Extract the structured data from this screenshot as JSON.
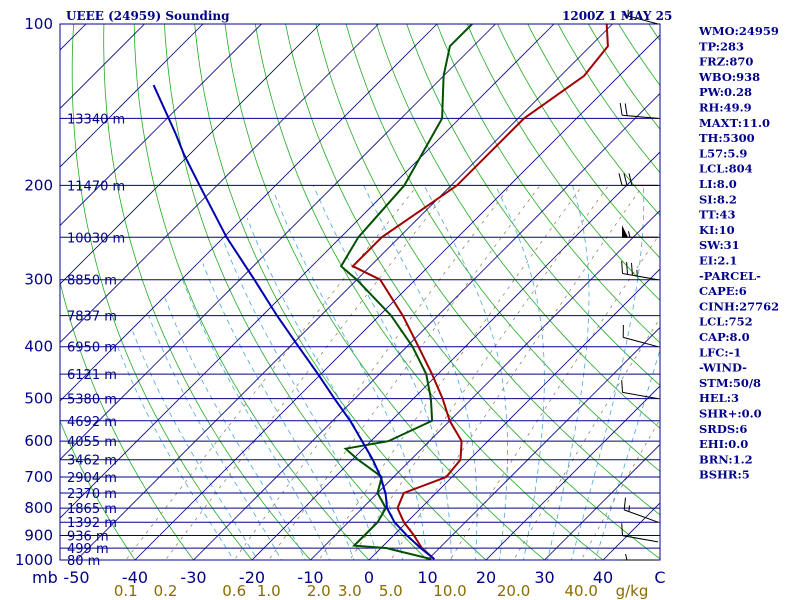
{
  "header": {
    "station": "UEEE (24959) Sounding",
    "time": "1200Z  1 MAY 25"
  },
  "indices": [
    "WMO:24959",
    "TP:283",
    "FRZ:870",
    "WBO:938",
    "PW:0.28",
    "RH:49.9",
    "MAXT:11.0",
    "TH:5300",
    "L57:5.9",
    "LCL:804",
    "LI:8.0",
    "SI:8.2",
    "TT:43",
    "KI:10",
    "SW:31",
    "EI:2.1",
    "-PARCEL-",
    "CAPE:6",
    "CINH:27762",
    "LCL:752",
    "CAP:8.0",
    "LFC:-1",
    "-WIND-",
    "STM:50/8",
    "HEL:3",
    "SHR+:0.0",
    "SRDS:6",
    "EHI:0.0",
    "BRN:1.2",
    "BSHR:5"
  ],
  "pressure_labels": [
    "100",
    "200",
    "300",
    "400",
    "500",
    "600",
    "700",
    "800",
    "900",
    "1000"
  ],
  "height_labels": [
    {
      "p": 150,
      "text": "13340 m"
    },
    {
      "p": 200,
      "text": "11470 m"
    },
    {
      "p": 250,
      "text": "10030 m"
    },
    {
      "p": 300,
      "text": "8850 m"
    },
    {
      "p": 350,
      "text": "7837 m"
    },
    {
      "p": 400,
      "text": "6950 m"
    },
    {
      "p": 450,
      "text": "6121 m"
    },
    {
      "p": 500,
      "text": "5380 m"
    },
    {
      "p": 550,
      "text": "4692 m"
    },
    {
      "p": 600,
      "text": "4055 m"
    },
    {
      "p": 650,
      "text": "3462 m"
    },
    {
      "p": 700,
      "text": "2904 m"
    },
    {
      "p": 750,
      "text": "2370 m"
    },
    {
      "p": 800,
      "text": "1865 m"
    },
    {
      "p": 850,
      "text": "1392 m"
    },
    {
      "p": 900,
      "text": "936 m"
    },
    {
      "p": 950,
      "text": "499 m"
    },
    {
      "p": 1000,
      "text": "80 m"
    }
  ],
  "temp_axis": {
    "unit_label": "mb",
    "ticks": [
      "-50",
      "-40",
      "-30",
      "-20",
      "-10",
      "0",
      "10",
      "20",
      "30",
      "40",
      "C"
    ]
  },
  "mixing_axis": {
    "ticks": [
      "0.1",
      "0.2",
      "0.6",
      "1.0",
      "2.0",
      "3.0",
      "5.0",
      "10.0",
      "20.0",
      "40.0"
    ],
    "unit": "g/kg"
  },
  "colors": {
    "isobar": "#00008b",
    "isotherm": "#00008b",
    "dry_adiabat": "#22aa22",
    "moist_adiabat": "#4aa8d8",
    "mixing_ratio": "#8b7355",
    "temperature": "#a00000",
    "dewpoint": "#005000",
    "parcel": "#0000b0",
    "axis_text": "#00008b",
    "mixing_text": "#8b6b00"
  },
  "chart_data": {
    "type": "skew-t log-p",
    "title": "UEEE (24959) Sounding",
    "valid_time": "1200Z  1 MAY 25",
    "y_axis": {
      "label": "mb",
      "scale": "log",
      "ylim": [
        1000,
        100
      ]
    },
    "x_axis": {
      "label": "C",
      "xlim": [
        -50,
        50
      ]
    },
    "mixing_ratio_unit": "g/kg",
    "series": [
      {
        "type": "line",
        "points": [
          [
            996,
            11
          ],
          [
            950,
            7
          ],
          [
            900,
            3.5
          ],
          [
            850,
            -0.5
          ],
          [
            800,
            -4
          ],
          [
            750,
            -5.5
          ],
          [
            700,
            -1
          ],
          [
            650,
            -1.5
          ],
          [
            600,
            -4.5
          ],
          [
            550,
            -10
          ],
          [
            500,
            -15
          ],
          [
            450,
            -21
          ],
          [
            400,
            -28
          ],
          [
            350,
            -36
          ],
          [
            300,
            -46
          ],
          [
            283,
            -53
          ],
          [
            250,
            -53
          ],
          [
            200,
            -49
          ],
          [
            175,
            -49
          ],
          [
            150,
            -49
          ],
          [
            125,
            -46
          ],
          [
            110,
            -47
          ],
          [
            100,
            -51
          ]
        ]
      },
      {
        "type": "line",
        "points": [
          [
            996,
            10.5
          ],
          [
            960,
            3
          ],
          [
            950,
            1
          ],
          [
            940,
            -5
          ],
          [
            900,
            -5
          ],
          [
            850,
            -5
          ],
          [
            800,
            -6
          ],
          [
            750,
            -10
          ],
          [
            700,
            -12
          ],
          [
            650,
            -19
          ],
          [
            620,
            -23
          ],
          [
            600,
            -17
          ],
          [
            550,
            -13
          ],
          [
            500,
            -17
          ],
          [
            450,
            -22
          ],
          [
            400,
            -29
          ],
          [
            350,
            -38
          ],
          [
            300,
            -50
          ],
          [
            283,
            -55
          ],
          [
            250,
            -57
          ],
          [
            200,
            -58
          ],
          [
            150,
            -63
          ],
          [
            125,
            -70
          ],
          [
            110,
            -74
          ],
          [
            100,
            -74
          ]
        ]
      },
      {
        "type": "line",
        "points": [
          [
            996,
            11
          ],
          [
            950,
            6.8
          ],
          [
            900,
            2.3
          ],
          [
            850,
            -2.1
          ],
          [
            800,
            -5.8
          ],
          [
            752,
            -8.5
          ],
          [
            700,
            -12.2
          ],
          [
            650,
            -16.5
          ],
          [
            600,
            -21.5
          ],
          [
            550,
            -27
          ],
          [
            500,
            -33.5
          ],
          [
            450,
            -40.5
          ],
          [
            400,
            -48.5
          ],
          [
            350,
            -57.5
          ],
          [
            300,
            -67.5
          ],
          [
            250,
            -79.5
          ],
          [
            200,
            -93
          ],
          [
            175,
            -101
          ],
          [
            160,
            -106
          ],
          [
            130,
            -118
          ]
        ]
      }
    ],
    "wind_barbs": [
      {
        "p": 1000,
        "dir": 270,
        "spd": 5
      },
      {
        "p": 925,
        "dir": 280,
        "spd": 10
      },
      {
        "p": 850,
        "dir": 290,
        "spd": 15
      },
      {
        "p": 500,
        "dir": 280,
        "spd": 10
      },
      {
        "p": 400,
        "dir": 285,
        "spd": 10
      },
      {
        "p": 300,
        "dir": 280,
        "spd": 35
      },
      {
        "p": 250,
        "dir": 270,
        "spd": 55
      },
      {
        "p": 200,
        "dir": 270,
        "spd": 30
      },
      {
        "p": 150,
        "dir": 275,
        "spd": 20
      },
      {
        "p": 100,
        "dir": 285,
        "spd": 5
      }
    ]
  }
}
